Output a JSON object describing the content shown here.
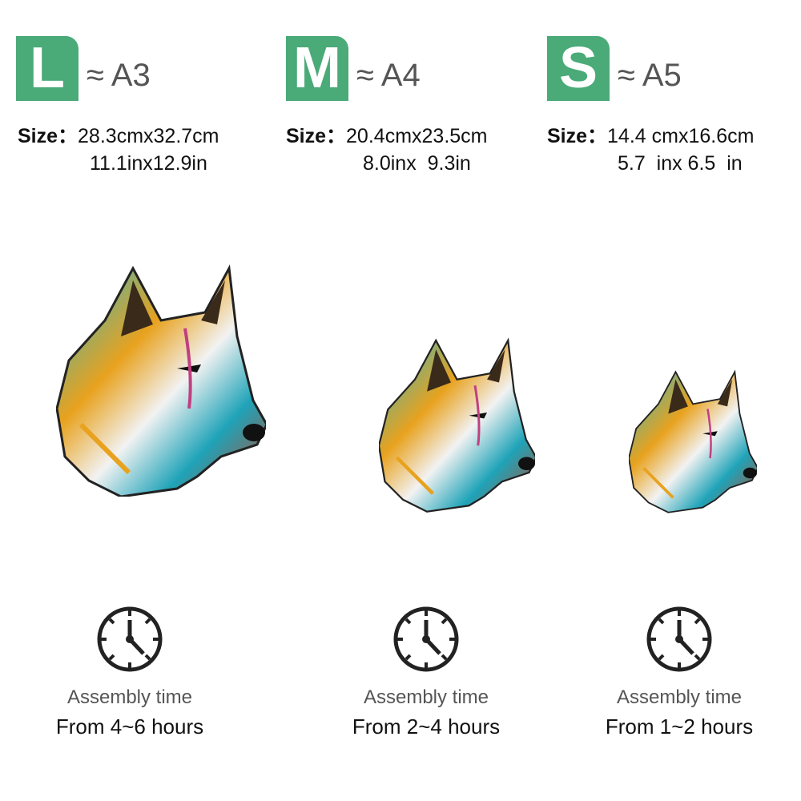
{
  "accent_color": "#4aaa78",
  "sizes": [
    {
      "badge": "L",
      "approx": "≈ A3",
      "size_label": "Size：",
      "cm": "28.3cmx32.7cm",
      "inch": "11.1inx12.9in",
      "image": "wolf-head-puzzle",
      "clock_icon": "clock-icon",
      "assembly_label": "Assembly time",
      "assembly_time": "From 4~6 hours"
    },
    {
      "badge": "M",
      "approx": "≈ A4",
      "size_label": "Size：",
      "cm": "20.4cmx23.5cm",
      "inch": "8.0inx  9.3in",
      "image": "wolf-head-puzzle",
      "clock_icon": "clock-icon",
      "assembly_label": "Assembly time",
      "assembly_time": "From 2~4 hours"
    },
    {
      "badge": "S",
      "approx": "≈ A5",
      "size_label": "Size：",
      "cm": "14.4 cmx16.6cm",
      "inch": "5.7  inx 6.5  in",
      "image": "wolf-head-puzzle",
      "clock_icon": "clock-icon",
      "assembly_label": "Assembly time",
      "assembly_time": "From 1~2 hours"
    }
  ]
}
